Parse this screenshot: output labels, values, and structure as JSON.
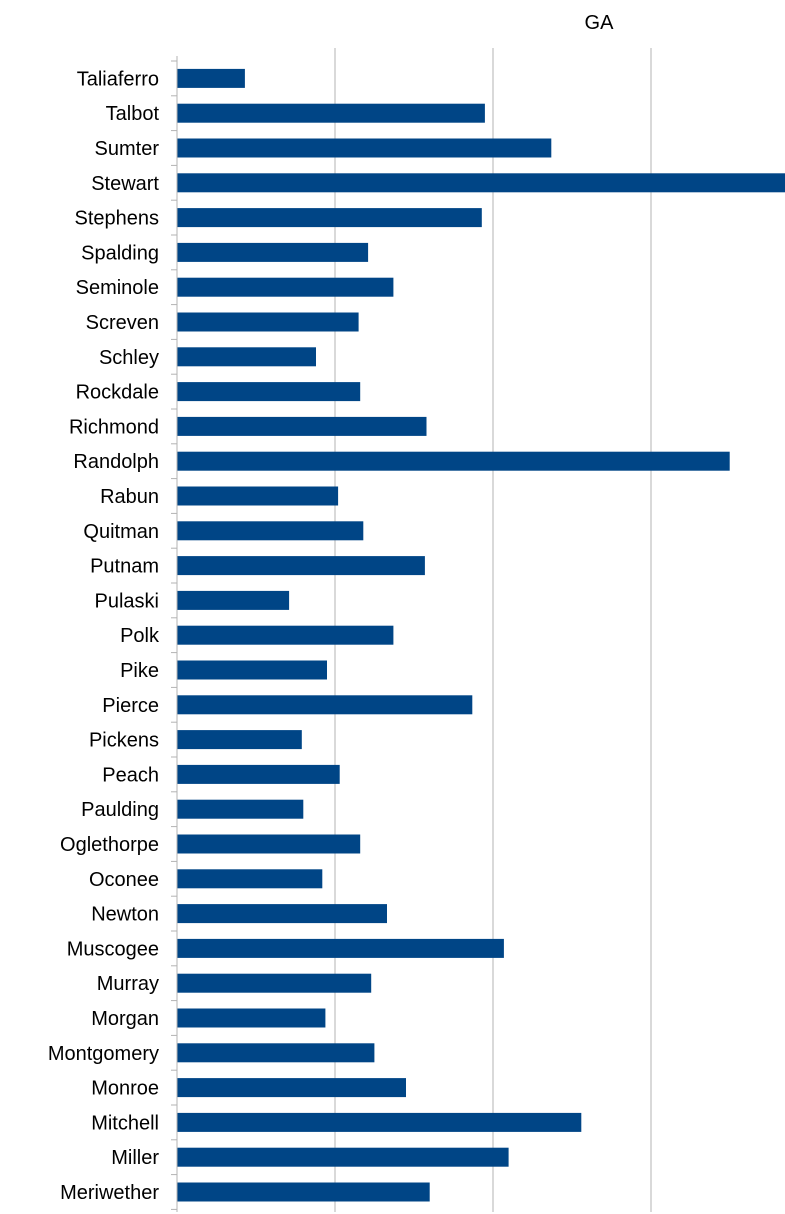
{
  "chart_data": {
    "type": "bar",
    "orientation": "horizontal",
    "title": "GA",
    "xlabel": "",
    "ylabel": "",
    "grid": true,
    "legend": "none",
    "bar_color": "#004586",
    "grid_color": "#b3b3b3",
    "xlim": [
      0,
      3.85
    ],
    "categories": [
      "Taliaferro",
      "Talbot",
      "Sumter",
      "Stewart",
      "Stephens",
      "Spalding",
      "Seminole",
      "Screven",
      "Schley",
      "Rockdale",
      "Richmond",
      "Randolph",
      "Rabun",
      "Quitman",
      "Putnam",
      "Pulaski",
      "Polk",
      "Pike",
      "Pierce",
      "Pickens",
      "Peach",
      "Paulding",
      "Oglethorpe",
      "Oconee",
      "Newton",
      "Muscogee",
      "Murray",
      "Morgan",
      "Montgomery",
      "Monroe",
      "Mitchell",
      "Miller",
      "Meriwether"
    ],
    "values": [
      0.43,
      1.95,
      2.37,
      3.85,
      1.93,
      1.21,
      1.37,
      1.15,
      0.88,
      1.16,
      1.58,
      3.5,
      1.02,
      1.18,
      1.57,
      0.71,
      1.37,
      0.95,
      1.87,
      0.79,
      1.03,
      0.8,
      1.16,
      0.92,
      1.33,
      2.07,
      1.23,
      0.94,
      1.25,
      1.45,
      2.56,
      2.1,
      1.6
    ]
  }
}
